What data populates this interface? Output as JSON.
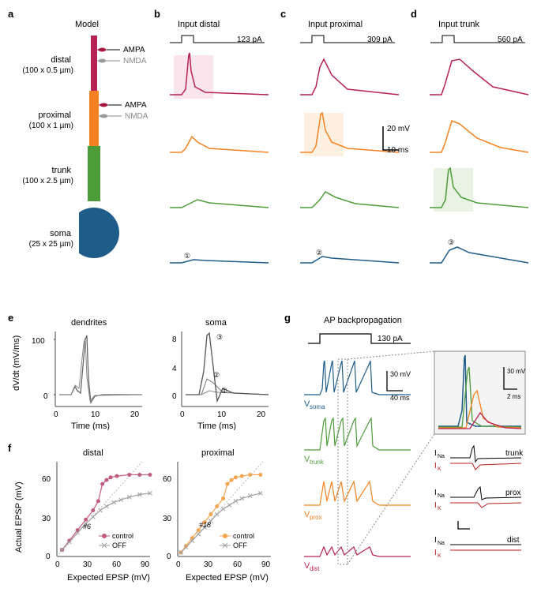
{
  "colors": {
    "distal": "#b62155",
    "proximal": "#f58220",
    "trunk": "#4d9c3a",
    "soma": "#1e5c8a",
    "ampa": "#a5183f",
    "nmda": "#9b9b9b",
    "gray": "#888888",
    "black": "#000000",
    "control_distal": "#c15b82",
    "control_proximal": "#f5a550",
    "off": "#a0a0a0",
    "highlight_distal": "#fbe5ec",
    "highlight_proximal": "#fdf0e0",
    "highlight_trunk": "#e8f3e3",
    "ik_red": "#b81e1e",
    "axis": "#444444"
  },
  "panels": {
    "a": {
      "title": "Model",
      "compartments": {
        "distal": {
          "label": "distal",
          "dims": "(100 x 0.5 µm)",
          "color": "#b62155"
        },
        "proximal": {
          "label": "proximal",
          "dims": "(100 x 1 µm)",
          "color": "#f58220"
        },
        "trunk": {
          "label": "trunk",
          "dims": "(100 x 2.5 µm)",
          "color": "#4d9c3a"
        },
        "soma": {
          "label": "soma",
          "dims": "(25 x 25 µm)",
          "color": "#1e5c8a"
        }
      },
      "receptors": {
        "ampa": "AMPA",
        "nmda": "NMDA"
      }
    },
    "b": {
      "title": "Input distal",
      "current": "123 pA"
    },
    "c": {
      "title": "Input proximal",
      "current": "309 pA"
    },
    "d": {
      "title": "Input trunk",
      "current": "560 pA"
    },
    "e": {
      "titles": {
        "left": "dendrites",
        "right": "soma"
      },
      "ylabel": "dV/dt (mV/ms)",
      "xlabel": "Time (ms)",
      "yticks_left": [
        "0",
        "100"
      ],
      "yticks_right": [
        "0",
        "4",
        "8"
      ],
      "xticks": [
        "0",
        "10",
        "20"
      ],
      "markers": [
        "①",
        "②",
        "③"
      ]
    },
    "f": {
      "titles": {
        "left": "distal",
        "right": "proximal"
      },
      "ylabel": "Actual EPSP (mV)",
      "xlabel": "Expected EPSP (mV)",
      "yticks": [
        "0",
        "30",
        "60"
      ],
      "xticks": [
        "0",
        "30",
        "60",
        "90"
      ],
      "legend": {
        "control": "control",
        "off": "OFF"
      },
      "annotations": {
        "left": "#6",
        "right": "#18"
      }
    },
    "g": {
      "title": "AP backpropagation",
      "current": "130 pA",
      "vlabels": {
        "soma": "Vsoma",
        "trunk": "Vtrunk",
        "prox": "Vprox",
        "dist": "Vdist"
      },
      "ilabels": {
        "na": "INa",
        "k": "IK"
      },
      "regions": [
        "trunk",
        "prox",
        "dist"
      ]
    },
    "scales": {
      "bcd_mv": "20 mV",
      "bcd_ms": "10 ms",
      "g_left_mv": "30 mV",
      "g_left_ms": "40 ms",
      "g_right_mv": "30 mV",
      "g_right_ms": "2 ms"
    },
    "soma_markers": [
      "①",
      "②",
      "③"
    ]
  },
  "data": {
    "f_distal_control": {
      "x": [
        5,
        12,
        20,
        28,
        35,
        40,
        44,
        48,
        52,
        58,
        70,
        80,
        90
      ],
      "y": [
        5,
        12,
        20,
        28,
        35,
        42,
        55,
        58,
        60,
        61,
        62,
        62,
        62
      ]
    },
    "f_distal_off": {
      "x": [
        5,
        12,
        20,
        28,
        35,
        42,
        48,
        55,
        62,
        70,
        80,
        90
      ],
      "y": [
        5,
        11,
        18,
        25,
        30,
        35,
        38,
        41,
        43,
        45,
        47,
        48
      ]
    },
    "f_prox_control": {
      "x": [
        3,
        8,
        14,
        20,
        26,
        32,
        38,
        44,
        48,
        52,
        56,
        62,
        70,
        80
      ],
      "y": [
        3,
        8,
        14,
        20,
        26,
        32,
        38,
        44,
        55,
        58,
        60,
        61,
        62,
        62
      ]
    },
    "f_prox_off": {
      "x": [
        3,
        8,
        14,
        20,
        26,
        32,
        38,
        44,
        50,
        56,
        62,
        70,
        80
      ],
      "y": [
        3,
        7,
        12,
        17,
        22,
        27,
        32,
        36,
        39,
        42,
        44,
        46,
        48
      ]
    }
  }
}
